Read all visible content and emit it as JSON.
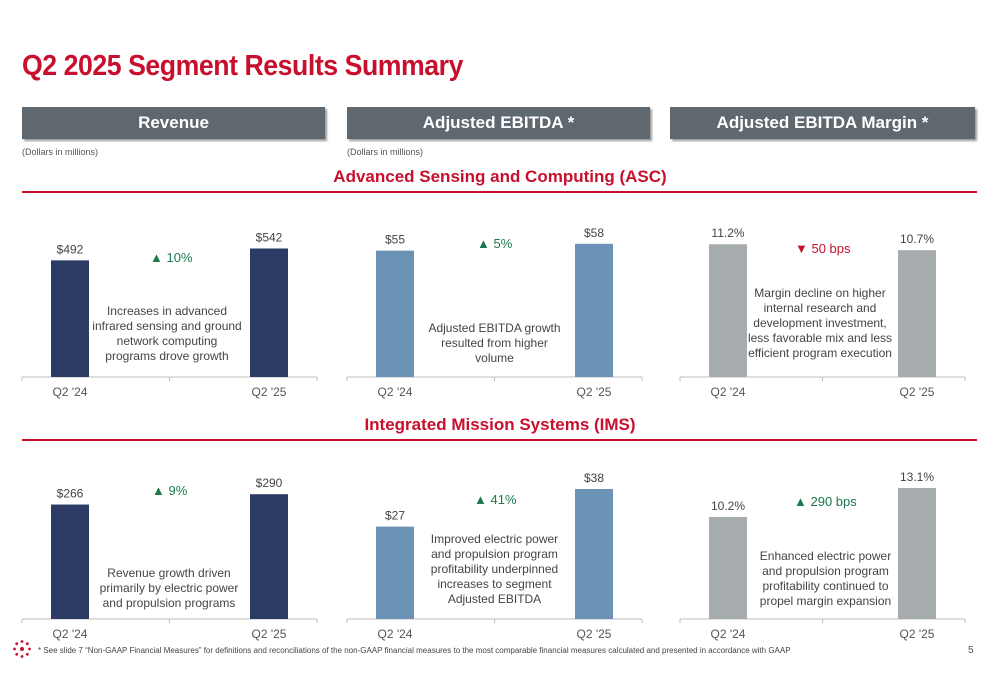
{
  "title": "Q2 2025 Segment Results Summary",
  "headers": [
    {
      "label": "Revenue",
      "units": "(Dollars in millions)"
    },
    {
      "label": "Adjusted EBITDA *",
      "units": "(Dollars in millions)"
    },
    {
      "label": "Adjusted EBITDA Margin *",
      "units": ""
    }
  ],
  "sections": [
    {
      "title": "Advanced Sensing and Computing (ASC)"
    },
    {
      "title": "Integrated Mission Systems (IMS)"
    }
  ],
  "colors": {
    "revenue": "#2b3b64",
    "ebitda": "#6c92b6",
    "margin": "#a6abae",
    "accent": "#c8102e",
    "up": "#1a7a4c"
  },
  "chart_data": [
    {
      "type": "bar",
      "id": "asc_rev",
      "categories": [
        "Q2 '24",
        "Q2 '25"
      ],
      "values": [
        492,
        542
      ],
      "labels": [
        "$492",
        "$542"
      ],
      "ylim": [
        0,
        620
      ],
      "change": "▲ 10%",
      "direction": "up",
      "description": "Increases in advanced infrared sensing and ground network computing programs drove growth"
    },
    {
      "type": "bar",
      "id": "asc_ebitda",
      "categories": [
        "Q2 '24",
        "Q2 '25"
      ],
      "values": [
        55,
        58
      ],
      "labels": [
        "$55",
        "$58"
      ],
      "ylim": [
        0,
        64
      ],
      "change": "▲ 5%",
      "direction": "up",
      "description": "Adjusted EBITDA growth resulted from higher volume"
    },
    {
      "type": "bar",
      "id": "asc_margin",
      "categories": [
        "Q2 '24",
        "Q2 '25"
      ],
      "values": [
        11.2,
        10.7
      ],
      "labels": [
        "11.2%",
        "10.7%"
      ],
      "ylim": [
        0,
        12.4
      ],
      "change": "▼ 50 bps",
      "direction": "down",
      "description": "Margin decline on higher internal research and development investment, less favorable mix and less efficient program execution"
    },
    {
      "type": "bar",
      "id": "ims_rev",
      "categories": [
        "Q2 '24",
        "Q2 '25"
      ],
      "values": [
        266,
        290
      ],
      "labels": [
        "$266",
        "$290"
      ],
      "ylim": [
        0,
        330
      ],
      "change": "▲ 9%",
      "direction": "up",
      "description": "Revenue growth driven primarily by electric power and propulsion programs"
    },
    {
      "type": "bar",
      "id": "ims_ebitda",
      "categories": [
        "Q2 '24",
        "Q2 '25"
      ],
      "values": [
        27,
        38
      ],
      "labels": [
        "$27",
        "$38"
      ],
      "ylim": [
        0,
        41.5
      ],
      "change": "▲ 41%",
      "direction": "up",
      "description": "Improved electric power and propulsion program profitability underpinned increases to segment Adjusted EBITDA"
    },
    {
      "type": "bar",
      "id": "ims_margin",
      "categories": [
        "Q2 '24",
        "Q2 '25"
      ],
      "values": [
        10.2,
        13.1
      ],
      "labels": [
        "10.2%",
        "13.1%"
      ],
      "ylim": [
        0,
        14.2
      ],
      "change": "▲ 290 bps",
      "direction": "up",
      "description": "Enhanced electric power and propulsion program profitability continued to propel margin expansion"
    }
  ],
  "footnote": "* See slide 7 “Non-GAAP Financial Measures” for definitions and reconciliations of the non-GAAP financial measures to the most comparable financial measures calculated and presented in accordance with GAAP",
  "page_number": "5"
}
